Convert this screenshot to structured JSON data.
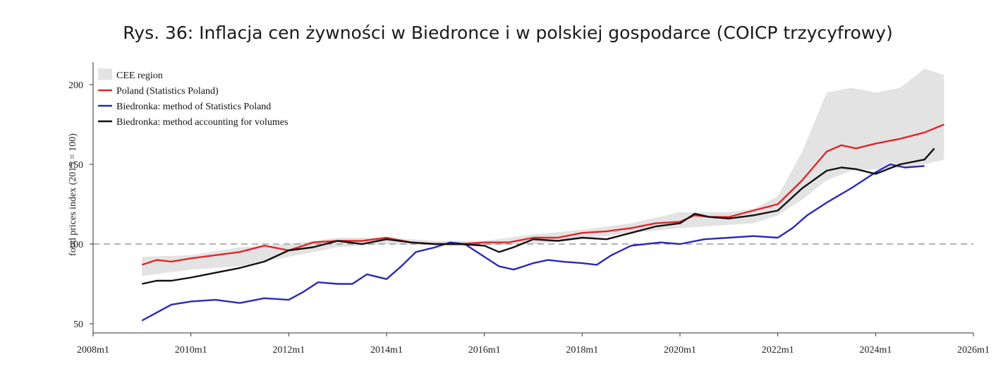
{
  "chart_data": {
    "type": "line",
    "title": "Rys. 36: Inflacja cen żywności w Biedronce i w polskiej gospodarce (COICP trzycyfrowy)",
    "ylabel": "food prices index (2015 = 100)",
    "xlabel": "",
    "xlim": [
      2008.0,
      2026.0
    ],
    "ylim": [
      45,
      215
    ],
    "x_ticks": [
      "2008m1",
      "2010m1",
      "2012m1",
      "2014m1",
      "2016m1",
      "2018m1",
      "2020m1",
      "2022m1",
      "2024m1",
      "2026m1"
    ],
    "y_ticks": [
      50,
      100,
      150,
      200
    ],
    "reference_line": 100,
    "grid": false,
    "legend_position": "top-left",
    "band": {
      "name": "CEE region",
      "color": "#e3e3e3",
      "x": [
        2009.0,
        2010.0,
        2011.0,
        2012.0,
        2013.0,
        2014.0,
        2015.0,
        2016.0,
        2017.0,
        2018.0,
        2019.0,
        2020.0,
        2021.0,
        2021.5,
        2022.0,
        2022.5,
        2023.0,
        2023.5,
        2024.0,
        2024.5,
        2025.0,
        2025.4
      ],
      "lower": [
        80,
        84,
        86,
        92,
        98,
        100,
        99,
        99,
        100,
        103,
        107,
        110,
        112,
        113,
        118,
        128,
        140,
        146,
        147,
        148,
        150,
        153
      ],
      "upper": [
        92,
        93,
        98,
        100,
        104,
        104,
        102,
        102,
        106,
        109,
        113,
        120,
        120,
        122,
        130,
        158,
        195,
        198,
        195,
        198,
        210,
        206
      ]
    },
    "series": [
      {
        "name": "Poland (Statistics Poland)",
        "color": "#e0262a",
        "x": [
          2009.0,
          2009.3,
          2009.6,
          2010.0,
          2010.5,
          2011.0,
          2011.5,
          2012.0,
          2012.5,
          2013.0,
          2013.5,
          2014.0,
          2014.5,
          2015.0,
          2015.5,
          2016.0,
          2016.5,
          2017.0,
          2017.5,
          2018.0,
          2018.5,
          2019.0,
          2019.5,
          2020.0,
          2020.3,
          2020.6,
          2021.0,
          2021.5,
          2022.0,
          2022.5,
          2023.0,
          2023.3,
          2023.6,
          2024.0,
          2024.5,
          2025.0,
          2025.4
        ],
        "values": [
          87,
          90,
          89,
          91,
          93,
          95,
          99,
          96,
          101,
          102,
          102,
          104,
          101,
          100,
          100,
          101,
          101,
          104,
          104,
          107,
          108,
          110,
          113,
          114,
          118,
          117,
          117,
          121,
          125,
          140,
          158,
          162,
          160,
          163,
          166,
          170,
          175
        ]
      },
      {
        "name": "Biedronka: method of Statistics Poland",
        "color": "#2a2ab5",
        "x": [
          2009.0,
          2009.3,
          2009.6,
          2010.0,
          2010.5,
          2011.0,
          2011.5,
          2012.0,
          2012.3,
          2012.6,
          2013.0,
          2013.3,
          2013.6,
          2014.0,
          2014.3,
          2014.6,
          2015.0,
          2015.3,
          2015.6,
          2016.0,
          2016.3,
          2016.6,
          2017.0,
          2017.3,
          2017.6,
          2018.0,
          2018.3,
          2018.6,
          2019.0,
          2019.3,
          2019.6,
          2020.0,
          2020.5,
          2021.0,
          2021.5,
          2022.0,
          2022.3,
          2022.6,
          2023.0,
          2023.5,
          2024.0,
          2024.3,
          2024.6,
          2025.0
        ],
        "values": [
          52,
          57,
          62,
          64,
          65,
          63,
          66,
          65,
          70,
          76,
          75,
          75,
          81,
          78,
          86,
          95,
          98,
          101,
          100,
          92,
          86,
          84,
          88,
          90,
          89,
          88,
          87,
          93,
          99,
          100,
          101,
          100,
          103,
          104,
          105,
          104,
          110,
          118,
          126,
          135,
          145,
          150,
          148,
          149
        ]
      },
      {
        "name": "Biedronka: method accounting for volumes",
        "color": "#111111",
        "x": [
          2009.0,
          2009.3,
          2009.6,
          2010.0,
          2010.5,
          2011.0,
          2011.5,
          2012.0,
          2012.5,
          2013.0,
          2013.5,
          2014.0,
          2014.5,
          2015.0,
          2015.5,
          2016.0,
          2016.3,
          2016.6,
          2017.0,
          2017.5,
          2018.0,
          2018.5,
          2019.0,
          2019.5,
          2020.0,
          2020.3,
          2020.6,
          2021.0,
          2021.5,
          2022.0,
          2022.5,
          2023.0,
          2023.3,
          2023.6,
          2024.0,
          2024.5,
          2025.0,
          2025.2
        ],
        "values": [
          75,
          77,
          77,
          79,
          82,
          85,
          89,
          96,
          98,
          102,
          100,
          103,
          101,
          100,
          100,
          99,
          95,
          98,
          103,
          102,
          104,
          103,
          107,
          111,
          113,
          119,
          117,
          116,
          118,
          121,
          135,
          146,
          148,
          147,
          144,
          150,
          153,
          160
        ]
      }
    ]
  }
}
